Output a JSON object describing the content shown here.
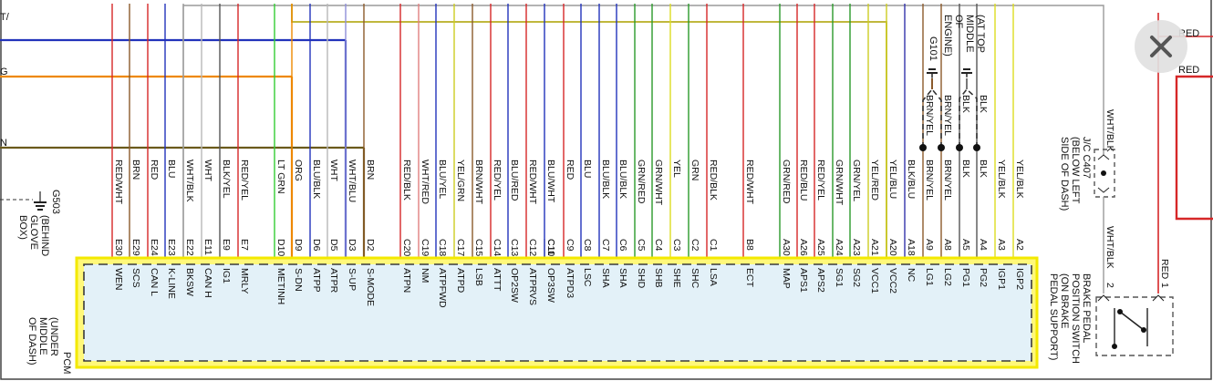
{
  "pcm": {
    "label": "PCM",
    "location": [
      "(UNDER",
      "MIDDLE",
      "OF DASH)"
    ]
  },
  "pins": [
    {
      "pin": "E30",
      "color": "RED/WHT",
      "signal": "WEN",
      "stroke": "#d62728"
    },
    {
      "pin": "E29",
      "color": "BRN",
      "signal": "SCS",
      "stroke": "#8b5a2b"
    },
    {
      "pin": "E24",
      "color": "RED",
      "signal": "CAN L",
      "stroke": "#d62728"
    },
    {
      "pin": "E23",
      "color": "BLU",
      "signal": "K-LINE",
      "stroke": "#2233bb"
    },
    {
      "pin": "E22",
      "color": "WHT/BLK",
      "signal": "BKSW",
      "stroke": "#9a9a9a"
    },
    {
      "pin": "E11",
      "color": "WHT",
      "signal": "CAN H",
      "stroke": "#b8b8b8"
    },
    {
      "pin": "E9",
      "color": "BLK/YEL",
      "signal": "IG1",
      "stroke": "#555555"
    },
    {
      "pin": "E7",
      "color": "RED/YEL",
      "signal": "MRLY",
      "stroke": "#d62728"
    },
    {
      "pin": "D10",
      "color": "LT GRN",
      "signal": "METINH",
      "stroke": "#33cc33"
    },
    {
      "pin": "D9",
      "color": "ORG",
      "signal": "S-DN",
      "stroke": "#ee8800"
    },
    {
      "pin": "D6",
      "color": "BLU/BLK",
      "signal": "ATPP",
      "stroke": "#2233bb"
    },
    {
      "pin": "D5",
      "color": "WHT",
      "signal": "ATPR",
      "stroke": "#b8b8b8"
    },
    {
      "pin": "D3",
      "color": "WHT/BLU",
      "signal": "S-UP",
      "stroke": "#8f8fd8"
    },
    {
      "pin": "D2",
      "color": "BRN",
      "signal": "S-MODE",
      "stroke": "#8b5a2b"
    },
    {
      "pin": "C20",
      "color": "RED/BLK",
      "signal": "ATPN",
      "stroke": "#d62728"
    },
    {
      "pin": "C19",
      "color": "WHT/RED",
      "signal": "NM",
      "stroke": "#e08080"
    },
    {
      "pin": "C18",
      "color": "BLU/YEL",
      "signal": "ATPFWD",
      "stroke": "#2233bb"
    },
    {
      "pin": "C17",
      "color": "YEL/GRN",
      "signal": "ATPD",
      "stroke": "#cccc22"
    },
    {
      "pin": "C15",
      "color": "BRN/WHT",
      "signal": "LSB",
      "stroke": "#8b5a2b"
    },
    {
      "pin": "C14",
      "color": "RED/YEL",
      "signal": "ATTT",
      "stroke": "#d62728"
    },
    {
      "pin": "C13",
      "color": "BLU/RED",
      "signal": "OP2SW",
      "stroke": "#2233bb"
    },
    {
      "pin": "C12",
      "color": "RED/WHT",
      "signal": "ATPRVS",
      "stroke": "#d62728"
    },
    {
      "pin": "C11",
      "color": "",
      "signal": "",
      "stroke": ""
    },
    {
      "pin": "C10",
      "color": "BLU/WHT",
      "signal": "OP3SW",
      "stroke": "#2233bb"
    },
    {
      "pin": "C9",
      "color": "RED",
      "signal": "ATPD3",
      "stroke": "#d62728"
    },
    {
      "pin": "C8",
      "color": "BLU",
      "signal": "LSC",
      "stroke": "#2233bb"
    },
    {
      "pin": "C7",
      "color": "BLU/BLK",
      "signal": "SHA",
      "stroke": "#2233bb"
    },
    {
      "pin": "C6",
      "color": "BLU/BLK",
      "signal": "SHA",
      "stroke": "#2233bb"
    },
    {
      "pin": "C5",
      "color": "GRN/RED",
      "signal": "SHD",
      "stroke": "#2a9a2a"
    },
    {
      "pin": "C4",
      "color": "GRN/WHT",
      "signal": "SHB",
      "stroke": "#2a9a2a"
    },
    {
      "pin": "C3",
      "color": "YEL",
      "signal": "SHE",
      "stroke": "#dddd22"
    },
    {
      "pin": "C2",
      "color": "GRN",
      "signal": "SHC",
      "stroke": "#2a9a2a"
    },
    {
      "pin": "C1",
      "color": "RED/BLK",
      "signal": "LSA",
      "stroke": "#d62728"
    },
    {
      "pin": "B8",
      "color": "RED/WHT",
      "signal": "ECT",
      "stroke": "#d62728"
    },
    {
      "pin": "A30",
      "color": "GRN/RED",
      "signal": "MAP",
      "stroke": "#2a9a2a"
    },
    {
      "pin": "A26",
      "color": "RED/BLU",
      "signal": "APS1",
      "stroke": "#d62728"
    },
    {
      "pin": "A25",
      "color": "RED/YEL",
      "signal": "APS2",
      "stroke": "#d62728"
    },
    {
      "pin": "A24",
      "color": "GRN/WHT",
      "signal": "SG1",
      "stroke": "#2a9a2a"
    },
    {
      "pin": "A23",
      "color": "GRN/YEL",
      "signal": "SG2",
      "stroke": "#2a9a2a"
    },
    {
      "pin": "A21",
      "color": "YEL/RED",
      "signal": "VCC1",
      "stroke": "#cccc22"
    },
    {
      "pin": "A20",
      "color": "YEL/BLU",
      "signal": "VCC2",
      "stroke": "#cccc22"
    },
    {
      "pin": "A18",
      "color": "BLK/BLU",
      "signal": "NC",
      "stroke": "#3333aa"
    },
    {
      "pin": "A9",
      "color": "BRN/YEL",
      "signal": "LG1",
      "stroke": "#8b5a2b"
    },
    {
      "pin": "A8",
      "color": "BRN/YEL",
      "signal": "LG2",
      "stroke": "#8b5a2b"
    },
    {
      "pin": "A5",
      "color": "BLK",
      "signal": "PG1",
      "stroke": "#555555"
    },
    {
      "pin": "A4",
      "color": "BLK",
      "signal": "PG2",
      "stroke": "#555555"
    },
    {
      "pin": "A3",
      "color": "YEL/BLK",
      "signal": "IGP1",
      "stroke": "#dddd22"
    },
    {
      "pin": "A2",
      "color": "YEL/BLK",
      "signal": "IGP2",
      "stroke": "#dddd22"
    }
  ],
  "top_wires": [
    {
      "label": "T/",
      "stroke": "#2233bb"
    },
    {
      "label": "G",
      "stroke": "#ee8800"
    },
    {
      "label": "N",
      "stroke": "#6b5a1b"
    }
  ],
  "ground_g503": {
    "id": "G503",
    "location": [
      "(BEHIND",
      "GLOVE",
      "BOX)"
    ]
  },
  "ground_g101": {
    "id": "G101",
    "location": [
      "(AT TOP",
      "MIDDLE",
      "OF",
      "ENGINE)"
    ],
    "wires": [
      "BRN/YEL",
      "BRN/YEL",
      "BLK",
      "BLK"
    ]
  },
  "junction_c407": {
    "wire_label": "WHT/BLK",
    "label": [
      "J/C C407",
      "(BELOW LEFT",
      "SIDE OF DASH)"
    ]
  },
  "brake_switch": {
    "wire_left": "WHT/BLK",
    "wire_right": "RED",
    "pin_left": "2",
    "pin_right": "1",
    "label": [
      "BRAKE PEDAL",
      "POSITION SWITCH",
      "(ON BRAKE",
      "PEDAL SUPPORT)"
    ]
  },
  "right_labels": [
    "RED",
    "RED"
  ]
}
